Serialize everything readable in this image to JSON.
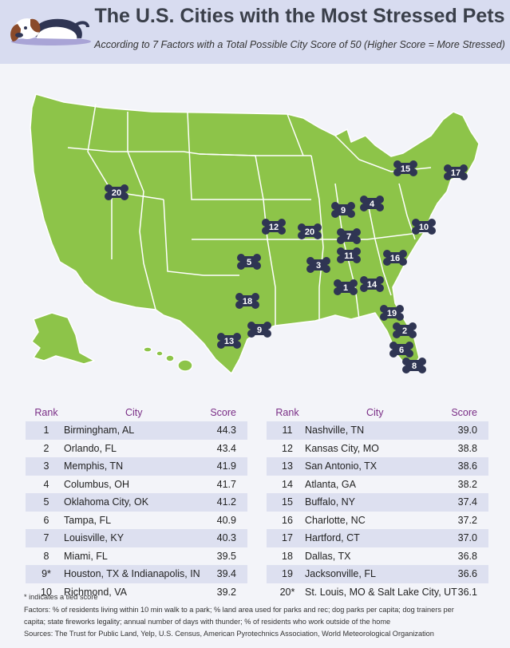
{
  "header": {
    "title": "The U.S. Cities with the Most Stressed Pets",
    "subtitle": "According to 7 Factors with a Total Possible City Score of 50 (Higher Score = More Stressed)"
  },
  "colors": {
    "land": "#8dc449",
    "border": "#ffffff",
    "bone": "#2f3553",
    "header": "#d8dcf0",
    "accent": "#7a2e86"
  },
  "map": {
    "markers": [
      "20",
      "15",
      "17",
      "9",
      "4",
      "12",
      "20",
      "7",
      "10",
      "5",
      "3",
      "11",
      "16",
      "18",
      "1",
      "14",
      "9",
      "19",
      "13",
      "2",
      "6",
      "8"
    ]
  },
  "table": {
    "headers": {
      "rank": "Rank",
      "city": "City",
      "score": "Score"
    },
    "left": [
      {
        "rank": "1",
        "city": "Birmingham, AL",
        "score": "44.3"
      },
      {
        "rank": "2",
        "city": "Orlando, FL",
        "score": "43.4"
      },
      {
        "rank": "3",
        "city": "Memphis, TN",
        "score": "41.9"
      },
      {
        "rank": "4",
        "city": "Columbus, OH",
        "score": "41.7"
      },
      {
        "rank": "5",
        "city": "Oklahoma City, OK",
        "score": "41.2"
      },
      {
        "rank": "6",
        "city": "Tampa, FL",
        "score": "40.9"
      },
      {
        "rank": "7",
        "city": "Louisville, KY",
        "score": "40.3"
      },
      {
        "rank": "8",
        "city": "Miami, FL",
        "score": "39.5"
      },
      {
        "rank": "9*",
        "city": "Houston, TX & Indianapolis, IN",
        "score": "39.4"
      },
      {
        "rank": "10",
        "city": "Richmond, VA",
        "score": "39.2"
      }
    ],
    "right": [
      {
        "rank": "11",
        "city": "Nashville, TN",
        "score": "39.0"
      },
      {
        "rank": "12",
        "city": "Kansas City, MO",
        "score": "38.8"
      },
      {
        "rank": "13",
        "city": "San Antonio, TX",
        "score": "38.6"
      },
      {
        "rank": "14",
        "city": "Atlanta, GA",
        "score": "38.2"
      },
      {
        "rank": "15",
        "city": "Buffalo, NY",
        "score": "37.4"
      },
      {
        "rank": "16",
        "city": "Charlotte, NC",
        "score": "37.2"
      },
      {
        "rank": "17",
        "city": "Hartford, CT",
        "score": "37.0"
      },
      {
        "rank": "18",
        "city": "Dallas, TX",
        "score": "36.8"
      },
      {
        "rank": "19",
        "city": "Jacksonville, FL",
        "score": "36.6"
      },
      {
        "rank": "20*",
        "city": "St. Louis, MO & Salt Lake City, UT",
        "score": "36.1"
      }
    ]
  },
  "footer": {
    "note": "* indicates a tied score",
    "factors_line1": "Factors: % of residents living within 10 min walk to a park; % land area used for parks and rec; dog parks per capita; dog trainers per",
    "factors_line2": "capita; state fireworks legality; annual number of days with thunder; % of residents who work outside of the home",
    "sources": "Sources: The Trust for Public Land, Yelp, U.S. Census, American Pyrotechnics Association, World Meteorological Organization"
  }
}
